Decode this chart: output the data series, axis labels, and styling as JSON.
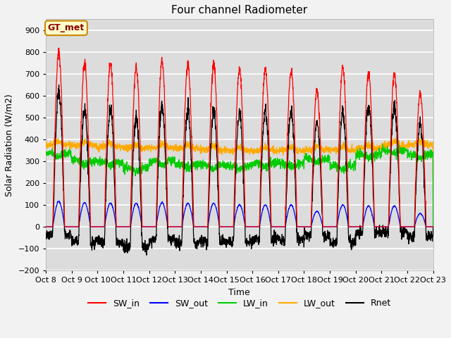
{
  "title": "Four channel Radiometer",
  "xlabel": "Time",
  "ylabel": "Solar Radiation (W/m2)",
  "ylim": [
    -200,
    950
  ],
  "yticks": [
    -200,
    -100,
    0,
    100,
    200,
    300,
    400,
    500,
    600,
    700,
    800,
    900
  ],
  "figure_bg": "#f0f0f0",
  "plot_bg": "#dcdcdc",
  "grid_color": "#ffffff",
  "annotation_text": "GT_met",
  "annotation_bg": "#ffffcc",
  "annotation_border": "#cc8800",
  "line_colors": {
    "SW_in": "#ff0000",
    "SW_out": "#0000ff",
    "LW_in": "#00cc00",
    "LW_out": "#ffaa00",
    "Rnet": "#000000"
  },
  "legend_entries": [
    "SW_in",
    "SW_out",
    "LW_in",
    "LW_out",
    "Rnet"
  ],
  "legend_colors": [
    "#ff0000",
    "#0000ff",
    "#00cc00",
    "#ffaa00",
    "#000000"
  ],
  "tick_labels": [
    "Oct 8",
    "Oct 9",
    "Oct 10",
    "Oct 11",
    "Oct 12",
    "Oct 13",
    "Oct 14",
    "Oct 15",
    "Oct 16",
    "Oct 17",
    "Oct 18",
    "Oct 19",
    "Oct 20",
    "Oct 21",
    "Oct 22",
    "Oct 23"
  ],
  "sw_in_peaks": [
    800,
    750,
    745,
    730,
    760,
    745,
    740,
    720,
    720,
    715,
    625,
    730,
    700,
    700,
    610
  ],
  "sw_out_peaks": [
    115,
    110,
    108,
    107,
    110,
    107,
    107,
    100,
    100,
    100,
    70,
    100,
    95,
    95,
    60
  ],
  "lw_in_base": [
    335,
    300,
    295,
    270,
    300,
    285,
    285,
    280,
    290,
    290,
    310,
    280,
    330,
    350,
    330
  ],
  "lw_out_base": [
    375,
    370,
    365,
    360,
    362,
    358,
    352,
    348,
    348,
    350,
    352,
    352,
    358,
    372,
    375
  ],
  "rise": 0.27,
  "set_": 0.73,
  "num_days": 15,
  "samples_per_day": 144
}
